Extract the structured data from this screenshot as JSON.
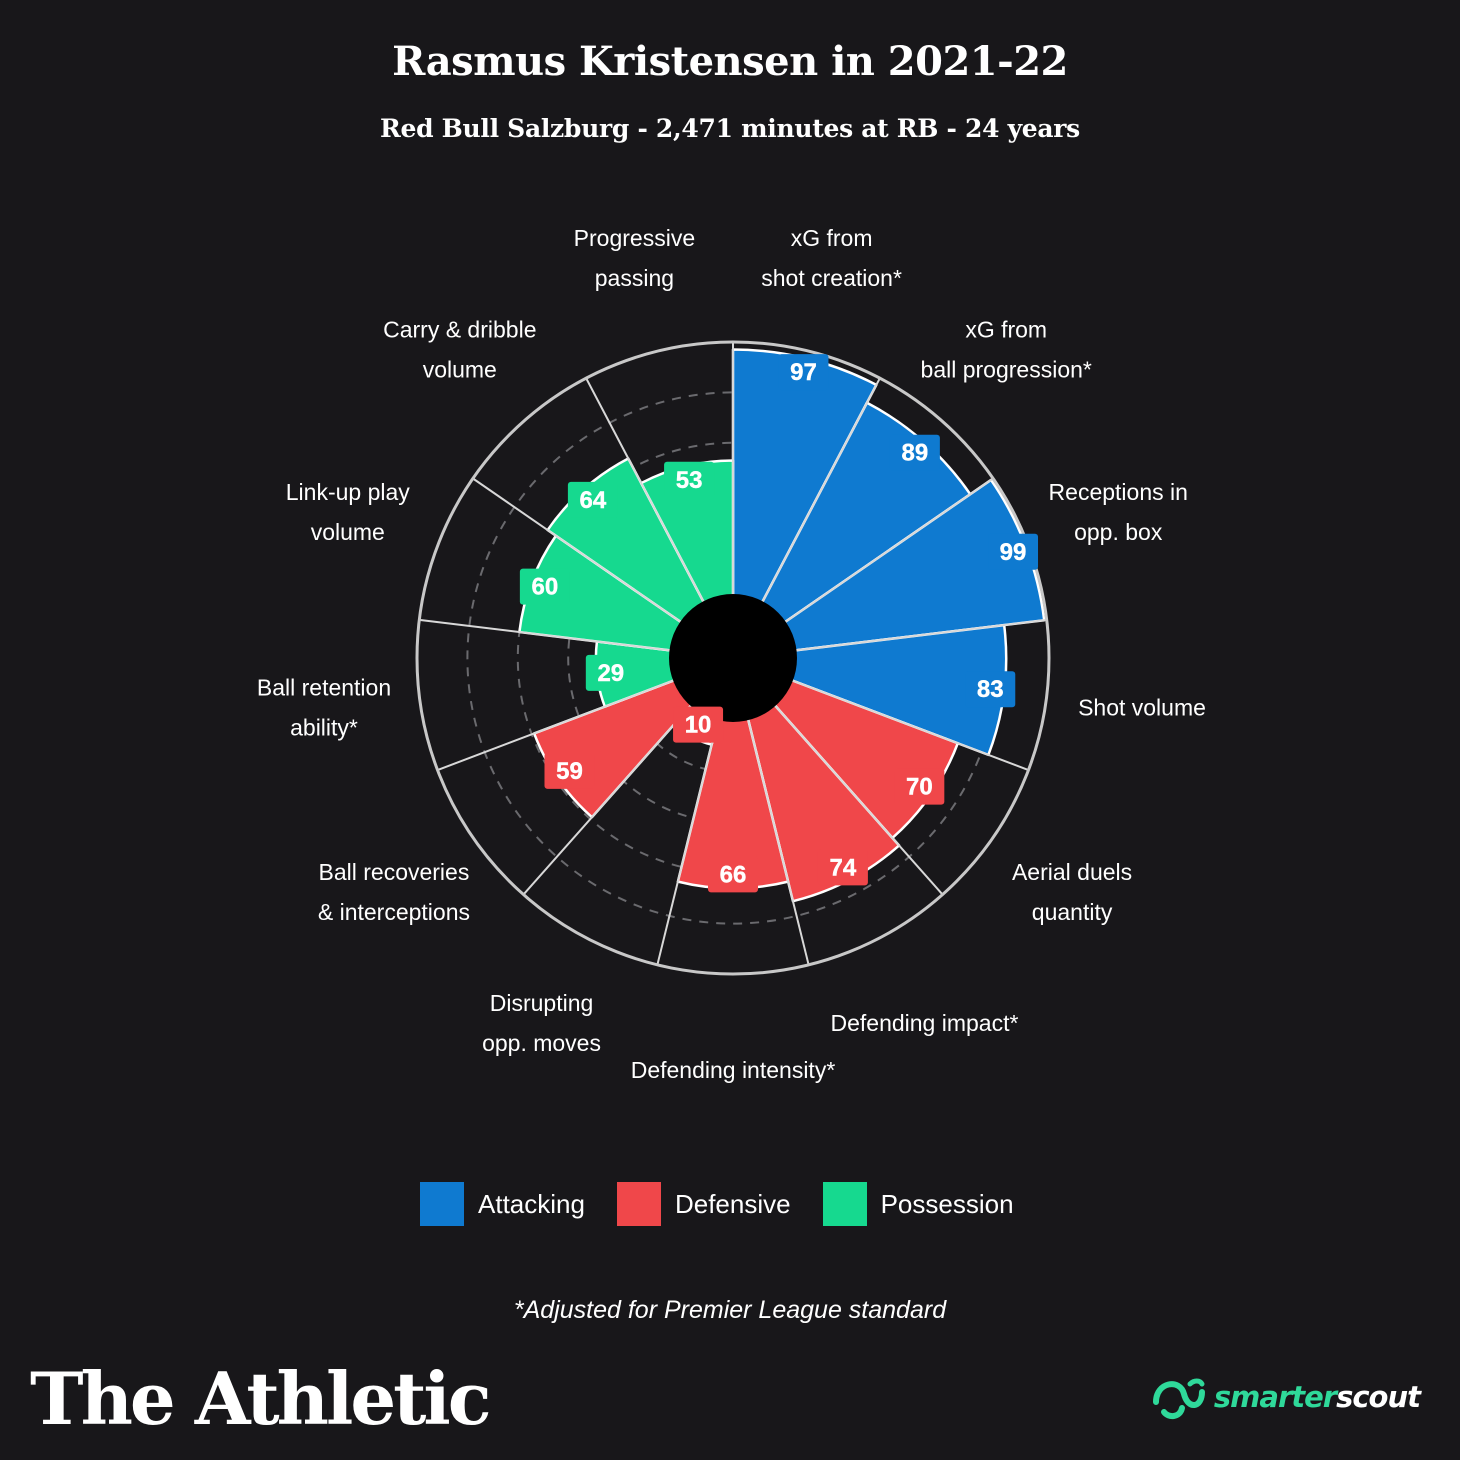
{
  "title": "Rasmus Kristensen in 2021-22",
  "subtitle": "Red Bull Salzburg - 2,471 minutes at RB - 24 years",
  "colors": {
    "attacking": "#0f7ad0",
    "defensive": "#f0474a",
    "possession": "#16d98f",
    "background": "#18171a"
  },
  "legend": [
    {
      "label": "Attacking",
      "color": "#0f7ad0"
    },
    {
      "label": "Defensive",
      "color": "#f0474a"
    },
    {
      "label": "Possession",
      "color": "#16d98f"
    }
  ],
  "footnote": "*Adjusted for Premier League standard",
  "brand": {
    "left": "The Athletic",
    "right_part1": "smarter",
    "right_part2": "scout",
    "right_icon": "smarterscout-logo-icon"
  },
  "chart_data": {
    "type": "polar-bar",
    "range": [
      0,
      100
    ],
    "categories": [
      {
        "label": [
          "xG from",
          "shot creation*"
        ],
        "value": 97,
        "group": "Attacking"
      },
      {
        "label": [
          "xG from",
          "ball progression*"
        ],
        "value": 89,
        "group": "Attacking"
      },
      {
        "label": [
          "Receptions in",
          "opp. box"
        ],
        "value": 99,
        "group": "Attacking"
      },
      {
        "label": [
          "Shot volume"
        ],
        "value": 83,
        "group": "Attacking"
      },
      {
        "label": [
          "Aerial duels",
          "quantity"
        ],
        "value": 70,
        "group": "Defensive"
      },
      {
        "label": [
          "Defending impact*"
        ],
        "value": 74,
        "group": "Defensive"
      },
      {
        "label": [
          "Defending intensity*"
        ],
        "value": 66,
        "group": "Defensive"
      },
      {
        "label": [
          "Disrupting",
          "opp. moves"
        ],
        "value": 10,
        "group": "Defensive"
      },
      {
        "label": [
          "Ball recoveries",
          "& interceptions"
        ],
        "value": 59,
        "group": "Defensive"
      },
      {
        "label": [
          "Ball retention",
          "ability*"
        ],
        "value": 29,
        "group": "Possession"
      },
      {
        "label": [
          "Link-up play",
          "volume"
        ],
        "value": 60,
        "group": "Possession"
      },
      {
        "label": [
          "Carry & dribble",
          "volume"
        ],
        "value": 64,
        "group": "Possession"
      },
      {
        "label": [
          "Progressive",
          "passing"
        ],
        "value": 53,
        "group": "Possession"
      }
    ]
  }
}
